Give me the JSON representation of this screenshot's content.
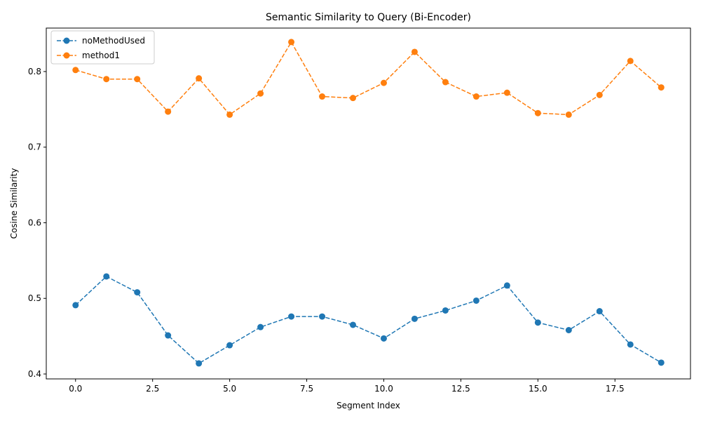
{
  "chart_data": {
    "type": "line",
    "title": "Semantic Similarity to Query (Bi-Encoder)",
    "xlabel": "Segment Index",
    "ylabel": "Cosine Similarity",
    "xlim": [
      -0.95,
      19.95
    ],
    "ylim": [
      0.3935,
      0.8575
    ],
    "xticks": [
      0.0,
      2.5,
      5.0,
      7.5,
      10.0,
      12.5,
      15.0,
      17.5
    ],
    "xtick_labels": [
      "0.0",
      "2.5",
      "5.0",
      "7.5",
      "10.0",
      "12.5",
      "15.0",
      "17.5"
    ],
    "yticks": [
      0.4,
      0.5,
      0.6,
      0.7,
      0.8
    ],
    "ytick_labels": [
      "0.4",
      "0.5",
      "0.6",
      "0.7",
      "0.8"
    ],
    "grid": false,
    "legend_position": "top-left",
    "x": [
      0,
      1,
      2,
      3,
      4,
      5,
      6,
      7,
      8,
      9,
      10,
      11,
      12,
      13,
      14,
      15,
      16,
      17,
      18,
      19
    ],
    "series": [
      {
        "name": "noMethodUsed",
        "color": "#1f77b4",
        "line_style": "dashed",
        "marker": "circle",
        "values": [
          0.491,
          0.529,
          0.508,
          0.451,
          0.414,
          0.438,
          0.462,
          0.476,
          0.476,
          0.465,
          0.447,
          0.473,
          0.484,
          0.497,
          0.517,
          0.468,
          0.458,
          0.483,
          0.439,
          0.415
        ]
      },
      {
        "name": "method1",
        "color": "#ff7f0e",
        "line_style": "dashed",
        "marker": "circle",
        "values": [
          0.802,
          0.79,
          0.79,
          0.747,
          0.791,
          0.743,
          0.771,
          0.839,
          0.767,
          0.765,
          0.785,
          0.826,
          0.786,
          0.767,
          0.772,
          0.745,
          0.743,
          0.769,
          0.814,
          0.779
        ]
      }
    ]
  }
}
